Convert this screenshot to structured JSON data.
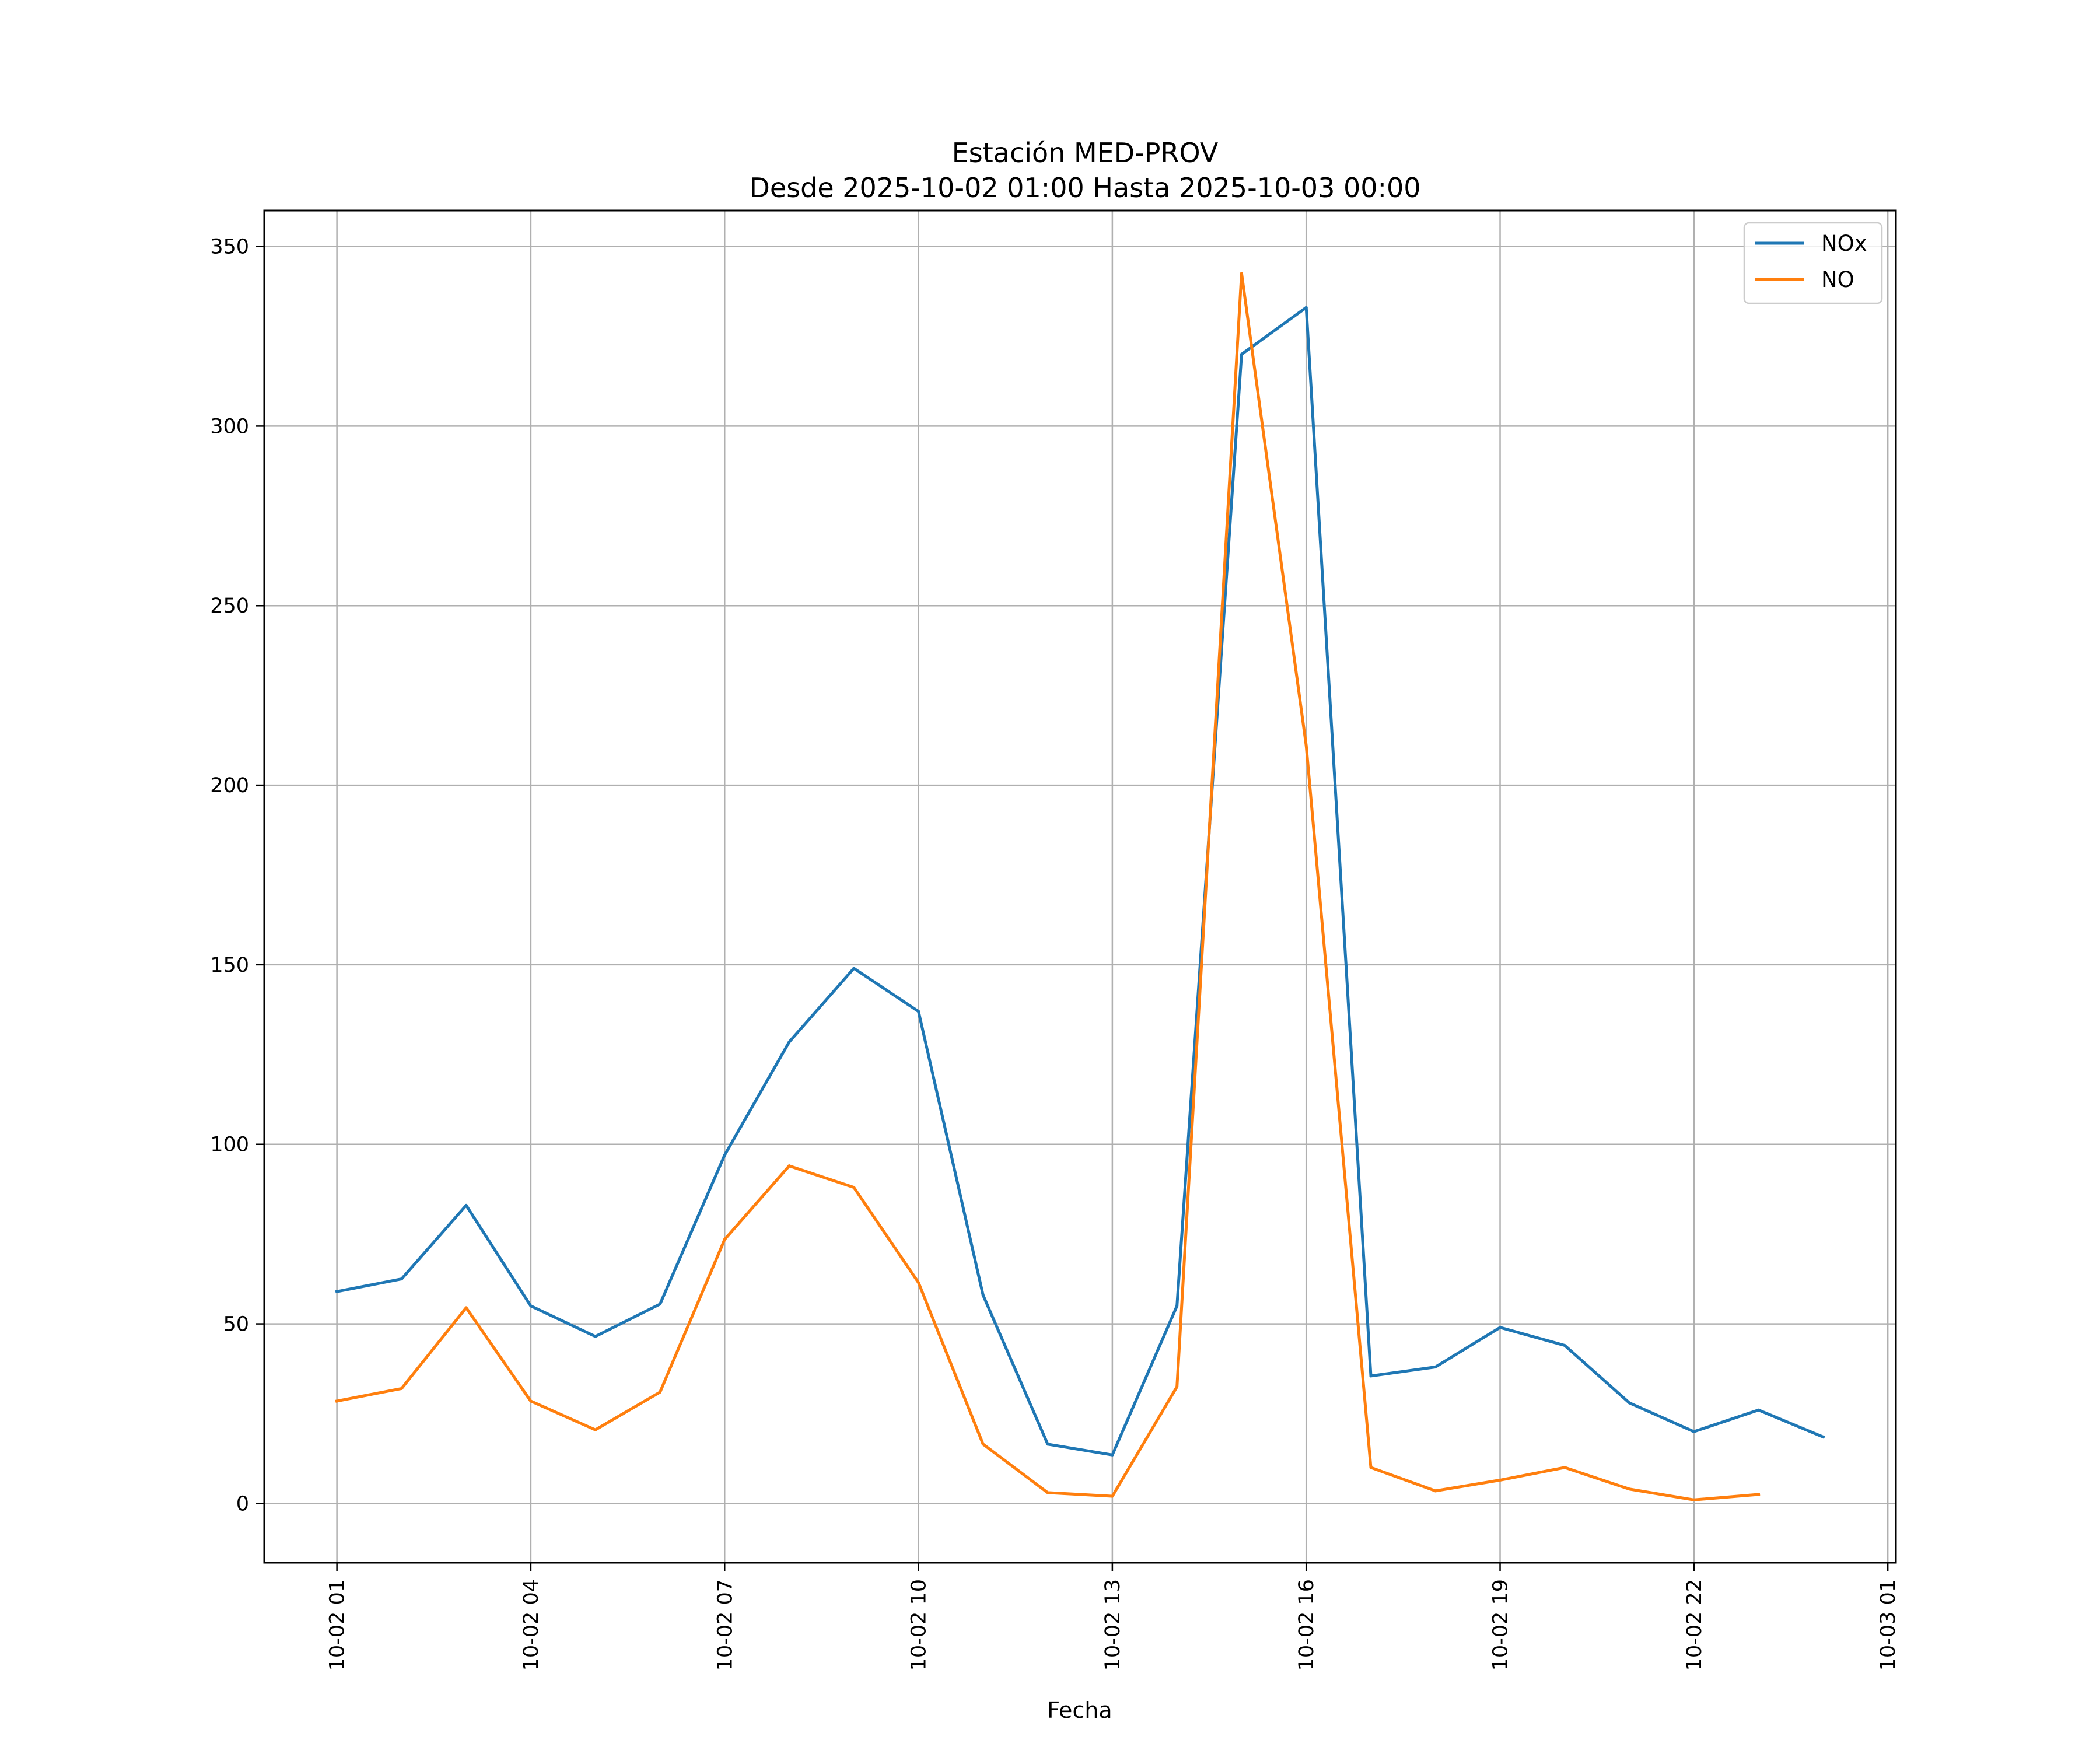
{
  "chart_data": {
    "type": "line",
    "title": "Estación MED-PROV",
    "subtitle": "Desde 2025-10-02 01:00 Hasta 2025-10-03 00:00",
    "xlabel": "Fecha",
    "ylabel": "",
    "x_range_hours": [
      -1.125,
      24.125
    ],
    "ylim": [
      -16.5,
      360
    ],
    "grid": true,
    "legend_position": "top-right",
    "x_ticks": [
      {
        "label": "10-02 01",
        "hour": 0
      },
      {
        "label": "10-02 04",
        "hour": 3
      },
      {
        "label": "10-02 07",
        "hour": 6
      },
      {
        "label": "10-02 10",
        "hour": 9
      },
      {
        "label": "10-02 13",
        "hour": 12
      },
      {
        "label": "10-02 16",
        "hour": 15
      },
      {
        "label": "10-02 19",
        "hour": 18
      },
      {
        "label": "10-02 22",
        "hour": 21
      },
      {
        "label": "10-03 01",
        "hour": 24
      }
    ],
    "y_ticks": [
      0,
      50,
      100,
      150,
      200,
      250,
      300,
      350
    ],
    "x": [
      "10-02 01:00",
      "10-02 02:00",
      "10-02 03:00",
      "10-02 04:00",
      "10-02 05:00",
      "10-02 06:00",
      "10-02 07:00",
      "10-02 08:00",
      "10-02 09:00",
      "10-02 10:00",
      "10-02 11:00",
      "10-02 12:00",
      "10-02 13:00",
      "10-02 14:00",
      "10-02 15:00",
      "10-02 16:00",
      "10-02 17:00",
      "10-02 18:00",
      "10-02 19:00",
      "10-02 20:00",
      "10-02 21:00",
      "10-02 22:00",
      "10-02 23:00",
      "10-03 00:00"
    ],
    "series": [
      {
        "name": "NOx",
        "color": "#1f77b4",
        "values": [
          59,
          62.5,
          83,
          55,
          46.5,
          55.5,
          97,
          128.5,
          149,
          137,
          58,
          16.5,
          13.5,
          55,
          320,
          333,
          35.5,
          38,
          49,
          44,
          28,
          20,
          26,
          18.5
        ]
      },
      {
        "name": "NO",
        "color": "#ff7f0e",
        "values": [
          28.5,
          32,
          54.5,
          28.5,
          20.5,
          31,
          73.5,
          94,
          88,
          61.5,
          16.5,
          3,
          2,
          32.5,
          342.5,
          211,
          10,
          3.5,
          6.5,
          10,
          4,
          1,
          2.5,
          null
        ]
      }
    ]
  }
}
